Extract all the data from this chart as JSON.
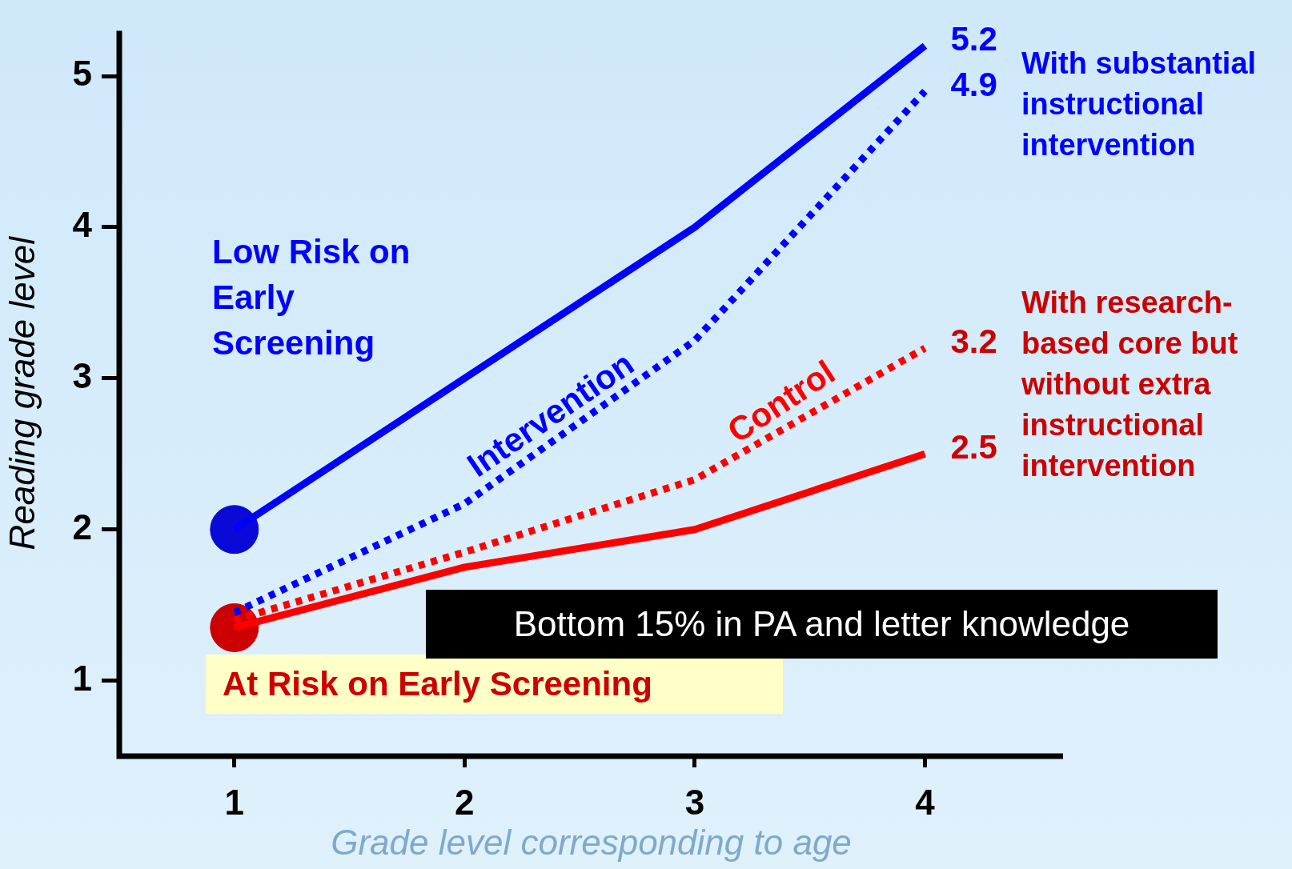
{
  "chart_data": {
    "type": "line",
    "xlabel": "Grade level corresponding to age",
    "ylabel": "Reading grade level",
    "xlim": [
      0.5,
      4.6
    ],
    "xticks": [
      1,
      2,
      3,
      4
    ],
    "ylim": [
      0.5,
      5.3
    ],
    "yticks": [
      1,
      2,
      3,
      4,
      5
    ],
    "grid": false,
    "legend": false,
    "marker": "none",
    "series": [
      {
        "name": "Low Risk on Early Screening",
        "color": "#0000ff",
        "x": [
          1,
          2,
          3,
          4
        ],
        "values": [
          2.0,
          3.0,
          4.0,
          5.2
        ],
        "line_style": "solid",
        "value_labels": [
          null,
          null,
          null,
          "5.2"
        ]
      },
      {
        "name": "Intervention",
        "color": "#0000ff",
        "x": [
          1,
          2,
          3,
          4
        ],
        "values": [
          1.45,
          2.17,
          3.25,
          4.9
        ],
        "line_style": "dotted",
        "value_labels": [
          null,
          null,
          null,
          "4.9"
        ]
      },
      {
        "name": "Control",
        "color": "#ff0000",
        "x": [
          1,
          2,
          3,
          4
        ],
        "values": [
          1.4,
          1.85,
          2.33,
          3.2
        ],
        "line_style": "dotted",
        "value_labels": [
          null,
          null,
          null,
          "3.2"
        ]
      },
      {
        "name": "At Risk on Early Screening",
        "color": "#ff0000",
        "x": [
          1,
          2,
          3,
          4
        ],
        "values": [
          1.35,
          1.75,
          2.0,
          2.5
        ],
        "line_style": "solid",
        "value_labels": [
          null,
          null,
          null,
          "2.5"
        ]
      },
      {
        "type": "scatter",
        "color": "#0a0ad8",
        "x": [
          1
        ],
        "values": [
          2.0
        ],
        "marker": "circle"
      },
      {
        "type": "scatter",
        "color": "#cc0000",
        "x": [
          1
        ],
        "values": [
          1.35
        ],
        "marker": "circle"
      }
    ],
    "annotations": [
      "With substantial instructional intervention",
      "With research-based core but without extra instructional intervention",
      "Bottom 15% in PA and letter knowledge"
    ]
  }
}
